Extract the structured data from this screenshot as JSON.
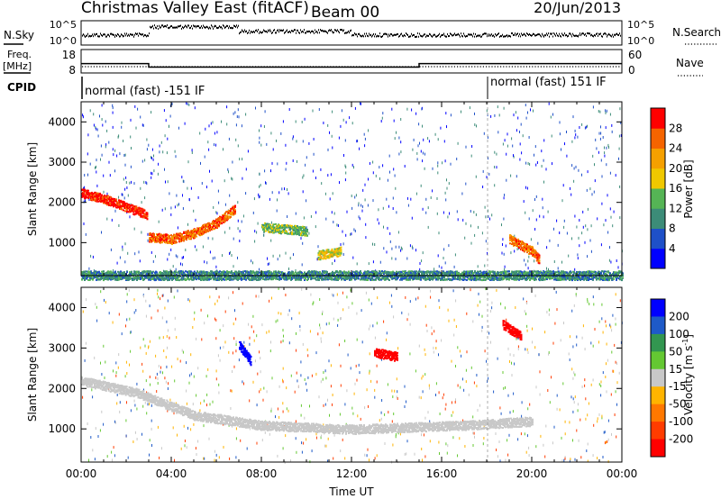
{
  "header": {
    "station": "Christmas Valley East (fitACF)",
    "beam": "Beam 00",
    "date": "20/Jun/2013"
  },
  "status_panels": {
    "nsky_label": "N.Sky",
    "nsearch_label": "N.Search",
    "nsky_ticks": [
      "10^5",
      "10^0"
    ],
    "nsky_right_ticks": [
      "10^5",
      "10^0"
    ],
    "freq_label": "Freq.",
    "freq_unit": "[MHz]",
    "freq_ticks": [
      "18",
      "8"
    ],
    "nave_label": "Nave",
    "nave_ticks": [
      "60",
      "0"
    ],
    "cpid_label": "CPID",
    "cpid_segments": [
      {
        "text": "normal (fast) -151 IF",
        "start_hour": 0,
        "end_hour": 18
      },
      {
        "text": "normal (fast) 151 IF",
        "start_hour": 18,
        "end_hour": 24
      }
    ],
    "freq_steps": [
      {
        "start_hour": 0,
        "end_hour": 3,
        "mhz": 12.0
      },
      {
        "start_hour": 3,
        "end_hour": 15,
        "mhz": 10.5
      },
      {
        "start_hour": 15,
        "end_hour": 24,
        "mhz": 12.0
      }
    ]
  },
  "chart_data": [
    {
      "type": "heatmap",
      "name": "power",
      "xlabel": "",
      "ylabel": "Slant Range [km]",
      "x_unit": "hours UT",
      "xlim": [
        0,
        24
      ],
      "ylim": [
        180,
        4500
      ],
      "yticks": [
        1000,
        2000,
        3000,
        4000
      ],
      "colorbar": {
        "label": "Power [dB]",
        "ticks": [
          4,
          8,
          12,
          16,
          20,
          24,
          28
        ],
        "bins": [
          "#0000ff",
          "#1e50c8",
          "#3c8c78",
          "#55b455",
          "#f0c800",
          "#f5a000",
          "#f56400",
          "#ff0000"
        ]
      },
      "features": [
        {
          "label": "strong trailing echo",
          "t": [
            0,
            1,
            2,
            2.9
          ],
          "range_km": [
            2250,
            2100,
            1900,
            1700
          ],
          "level": 28
        },
        {
          "label": "low echo band",
          "t": [
            3,
            4,
            5,
            6,
            6.8
          ],
          "range_km": [
            1150,
            1100,
            1250,
            1500,
            1850
          ],
          "level": 26
        },
        {
          "label": "mid patch",
          "t": [
            8,
            9,
            10
          ],
          "range_km": [
            1400,
            1350,
            1300
          ],
          "level": 14
        },
        {
          "label": "patch",
          "t": [
            10.5,
            11.5
          ],
          "range_km": [
            700,
            800
          ],
          "level": 16
        },
        {
          "label": "evening echo",
          "t": [
            19,
            20,
            20.3
          ],
          "range_km": [
            1100,
            800,
            600
          ],
          "level": 26
        },
        {
          "label": "near range",
          "t": [
            0,
            24
          ],
          "range_km": [
            200,
            200
          ],
          "level": 8
        }
      ]
    },
    {
      "type": "heatmap",
      "name": "velocity",
      "xlabel": "Time UT",
      "ylabel": "Slant Range [km]",
      "x_unit": "hours UT",
      "xlim": [
        0,
        24
      ],
      "ylim": [
        180,
        4500
      ],
      "yticks": [
        1000,
        2000,
        3000,
        4000
      ],
      "xtick_labels": [
        "00:00",
        "04:00",
        "08:00",
        "12:00",
        "16:00",
        "20:00",
        "00:00"
      ],
      "colorbar": {
        "label": "Velocity [m s^-1]",
        "ticks": [
          200,
          100,
          50,
          15,
          -15,
          -50,
          -100,
          -200
        ],
        "bins": [
          "#0000ff",
          "#1e5ac8",
          "#329650",
          "#64c832",
          "#c8c8c8",
          "#ffb400",
          "#ff7800",
          "#ff3c00",
          "#ff0000"
        ]
      },
      "features": [
        {
          "label": "ground scatter",
          "t": [
            0,
            2.5,
            5,
            8,
            12,
            17,
            20
          ],
          "range_km": [
            2200,
            1900,
            1350,
            1100,
            1000,
            1100,
            1200
          ],
          "velocity": 0
        },
        {
          "label": "positive burst",
          "t": [
            7,
            7.5
          ],
          "range_km": [
            3100,
            2700
          ],
          "velocity": 200
        },
        {
          "label": "negative patch",
          "t": [
            13,
            14
          ],
          "range_km": [
            2900,
            2800
          ],
          "velocity": -200
        },
        {
          "label": "negative patch",
          "t": [
            18.7,
            19.5
          ],
          "range_km": [
            3600,
            3300
          ],
          "velocity": -180
        }
      ]
    }
  ]
}
